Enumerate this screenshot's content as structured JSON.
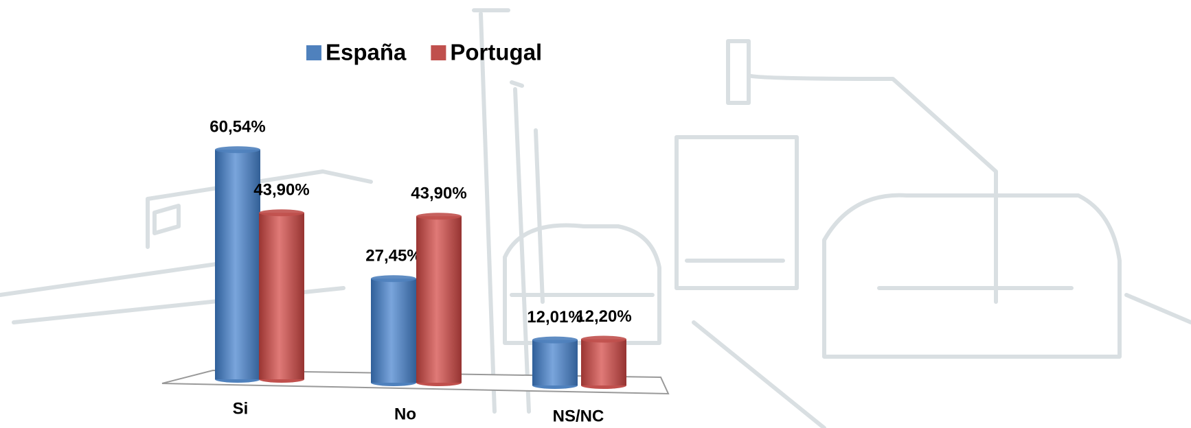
{
  "chart_data": {
    "type": "bar3d",
    "categories": [
      "Si",
      "No",
      "NS/NC"
    ],
    "series": [
      {
        "name": "España",
        "color": "#4f81bd",
        "values": [
          60.54,
          27.45,
          12.01
        ],
        "value_labels": [
          "60,54%",
          "27,45%",
          "12,01%"
        ]
      },
      {
        "name": "Portugal",
        "color": "#c0504d",
        "values": [
          43.9,
          43.9,
          12.2
        ],
        "value_labels": [
          "43,90%",
          "43,90%",
          "12,20%"
        ]
      }
    ],
    "legend": "top"
  }
}
